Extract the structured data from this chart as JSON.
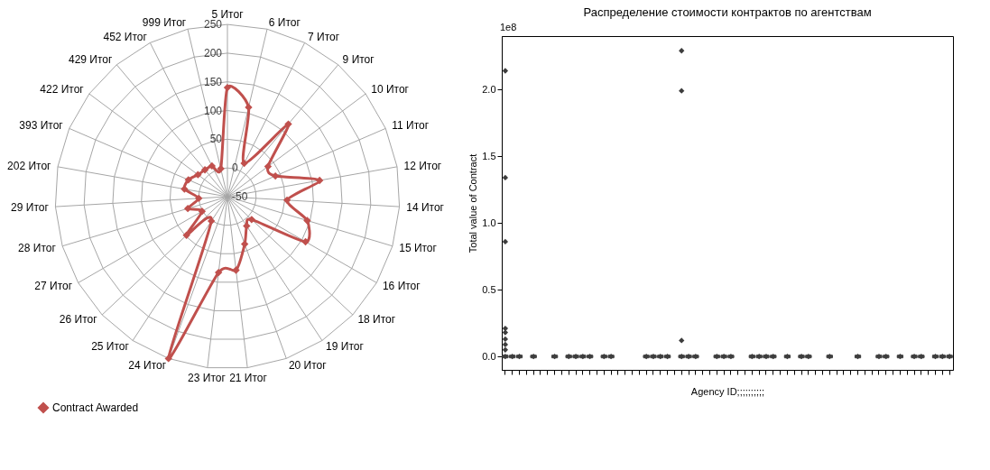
{
  "chart_data": [
    {
      "type": "radar",
      "categories": [
        "5 Итог",
        "6 Итог",
        "7 Итог",
        "9 Итог",
        "10 Итог",
        "11 Итог",
        "12 Итог",
        "14 Итог",
        "15 Итог",
        "16 Итог",
        "18 Итог",
        "19 Итог",
        "20 Итог",
        "21 Итог",
        "23 Итог",
        "24 Итог",
        "25 Итог",
        "26 Итог",
        "27 Итог",
        "28 Итог",
        "29 Итог",
        "202 Итог",
        "393 Итог",
        "422 Итог",
        "429 Итог",
        "452 Итог",
        "999 Итог"
      ],
      "series": [
        {
          "name": "Contract Awarded",
          "color": "#c0504d",
          "values": [
            140,
            110,
            15,
            115,
            38,
            41,
            113,
            54,
            95,
            107,
            8,
            11,
            38,
            79,
            83,
            250,
            1,
            48,
            1,
            22,
            0,
            26,
            24,
            14,
            11,
            10,
            0
          ]
        }
      ],
      "ylim": [
        -50,
        250
      ],
      "yticks": [
        -50,
        0,
        50,
        100,
        150,
        200,
        250
      ],
      "grid": true,
      "legend": "bottom",
      "marker": "diamond"
    },
    {
      "type": "box",
      "title": "Распределение стоимости контрактов по агентствам",
      "xlabel": "Agency ID;;;;;;;;;;",
      "ylabel": "Total value of Contract",
      "annotations": [
        "1e8"
      ],
      "categories": [
        null,
        null,
        null,
        null,
        null,
        null,
        null,
        null,
        null,
        null,
        null,
        null,
        null,
        null,
        null,
        null,
        null,
        null,
        null,
        null,
        null,
        null,
        null,
        null,
        null,
        null,
        null,
        null,
        null,
        null,
        null,
        null,
        null,
        null,
        null,
        null,
        null,
        null,
        null,
        null,
        null,
        null,
        null,
        null,
        null,
        null,
        null,
        null,
        null,
        null,
        null,
        null,
        null,
        null,
        null,
        null,
        null,
        null,
        null,
        null,
        null,
        null,
        null,
        null
      ],
      "boxes": [
        {
          "low": 0,
          "q1": 0,
          "median": 0,
          "q3": 0,
          "high": 0,
          "outliers": [
            0,
            0.05,
            0.09,
            0.13,
            0.18,
            0.21,
            0.86,
            1.34,
            2.14
          ]
        },
        {
          "low": 0,
          "q1": 0,
          "median": 0,
          "q3": 0,
          "high": 0,
          "outliers": [
            0
          ]
        },
        {
          "low": 0,
          "q1": 0,
          "median": 0,
          "q3": 0,
          "high": 0,
          "outliers": [
            0
          ]
        },
        null,
        {
          "low": 0,
          "q1": 0,
          "median": 0,
          "q3": 0,
          "high": 0,
          "outliers": [
            0
          ]
        },
        null,
        null,
        {
          "low": 0,
          "q1": 0,
          "median": 0,
          "q3": 0,
          "high": 0,
          "outliers": [
            0
          ]
        },
        null,
        {
          "low": 0,
          "q1": 0,
          "median": 0,
          "q3": 0,
          "high": 0,
          "outliers": [
            0
          ]
        },
        {
          "low": 0,
          "q1": 0,
          "median": 0,
          "q3": 0,
          "high": 0,
          "outliers": [
            0
          ]
        },
        {
          "low": 0,
          "q1": 0,
          "median": 0,
          "q3": 0,
          "high": 0,
          "outliers": [
            0
          ]
        },
        {
          "low": 0,
          "q1": 0,
          "median": 0,
          "q3": 0,
          "high": 0,
          "outliers": [
            0
          ]
        },
        null,
        {
          "low": 0,
          "q1": 0,
          "median": 0,
          "q3": 0,
          "high": 0,
          "outliers": [
            0
          ]
        },
        {
          "low": 0,
          "q1": 0,
          "median": 0,
          "q3": 0,
          "high": 0,
          "outliers": [
            0
          ]
        },
        null,
        null,
        null,
        null,
        {
          "low": 0,
          "q1": 0,
          "median": 0,
          "q3": 0,
          "high": 0,
          "outliers": [
            0
          ]
        },
        {
          "low": 0,
          "q1": 0,
          "median": 0,
          "q3": 0,
          "high": 0,
          "outliers": [
            0
          ]
        },
        {
          "low": 0,
          "q1": 0,
          "median": 0,
          "q3": 0,
          "high": 0,
          "outliers": [
            0
          ]
        },
        {
          "low": 0,
          "q1": 0,
          "median": 0,
          "q3": 0,
          "high": 0,
          "outliers": [
            0
          ]
        },
        null,
        {
          "low": 0,
          "q1": 0,
          "median": 0,
          "q3": 0,
          "high": 0,
          "outliers": [
            0,
            0.12,
            1.99,
            2.29
          ]
        },
        {
          "low": 0,
          "q1": 0,
          "median": 0,
          "q3": 0,
          "high": 0,
          "outliers": [
            0
          ]
        },
        {
          "low": 0,
          "q1": 0,
          "median": 0,
          "q3": 0,
          "high": 0,
          "outliers": [
            0
          ]
        },
        null,
        null,
        {
          "low": 0,
          "q1": 0,
          "median": 0,
          "q3": 0,
          "high": 0,
          "outliers": [
            0
          ]
        },
        {
          "low": 0,
          "q1": 0,
          "median": 0,
          "q3": 0,
          "high": 0,
          "outliers": [
            0
          ]
        },
        {
          "low": 0,
          "q1": 0,
          "median": 0,
          "q3": 0,
          "high": 0,
          "outliers": [
            0
          ]
        },
        null,
        null,
        {
          "low": 0,
          "q1": 0,
          "median": 0,
          "q3": 0,
          "high": 0,
          "outliers": [
            0
          ]
        },
        {
          "low": 0,
          "q1": 0,
          "median": 0,
          "q3": 0,
          "high": 0,
          "outliers": [
            0
          ]
        },
        {
          "low": 0,
          "q1": 0,
          "median": 0,
          "q3": 0,
          "high": 0,
          "outliers": [
            0
          ]
        },
        {
          "low": 0,
          "q1": 0,
          "median": 0,
          "q3": 0,
          "high": 0,
          "outliers": [
            0
          ]
        },
        null,
        {
          "low": 0,
          "q1": 0,
          "median": 0,
          "q3": 0,
          "high": 0,
          "outliers": [
            0
          ]
        },
        null,
        {
          "low": 0,
          "q1": 0,
          "median": 0,
          "q3": 0,
          "high": 0,
          "outliers": [
            0
          ]
        },
        {
          "low": 0,
          "q1": 0,
          "median": 0,
          "q3": 0,
          "high": 0,
          "outliers": [
            0
          ]
        },
        null,
        null,
        {
          "low": 0,
          "q1": 0,
          "median": 0,
          "q3": 0,
          "high": 0,
          "outliers": [
            0
          ]
        },
        null,
        null,
        null,
        {
          "low": 0,
          "q1": 0,
          "median": 0,
          "q3": 0,
          "high": 0,
          "outliers": [
            0
          ]
        },
        null,
        null,
        {
          "low": 0,
          "q1": 0,
          "median": 0,
          "q3": 0,
          "high": 0,
          "outliers": [
            0
          ]
        },
        {
          "low": 0,
          "q1": 0,
          "median": 0,
          "q3": 0,
          "high": 0,
          "outliers": [
            0
          ]
        },
        null,
        {
          "low": 0,
          "q1": 0,
          "median": 0,
          "q3": 0,
          "high": 0,
          "outliers": [
            0
          ]
        },
        null,
        {
          "low": 0,
          "q1": 0,
          "median": 0,
          "q3": 0,
          "high": 0,
          "outliers": [
            0
          ]
        },
        {
          "low": 0,
          "q1": 0,
          "median": 0,
          "q3": 0,
          "high": 0,
          "outliers": [
            0
          ]
        },
        null,
        {
          "low": 0,
          "q1": 0,
          "median": 0,
          "q3": 0,
          "high": 0,
          "outliers": [
            0
          ]
        },
        {
          "low": 0,
          "q1": 0,
          "median": 0,
          "q3": 0,
          "high": 0,
          "outliers": [
            0
          ]
        },
        {
          "low": 0,
          "q1": 0,
          "median": 0,
          "q3": 0,
          "high": 0,
          "outliers": [
            0
          ]
        }
      ],
      "ylim": [
        -0.1,
        2.4
      ],
      "yticks": [
        {
          "value": 0,
          "label": "0.0"
        },
        {
          "value": 0.5,
          "label": "0.5"
        },
        {
          "value": 1,
          "label": "1.0"
        },
        {
          "value": 1.5,
          "label": "1.5"
        },
        {
          "value": 2,
          "label": "2.0"
        }
      ],
      "grid": false
    }
  ]
}
